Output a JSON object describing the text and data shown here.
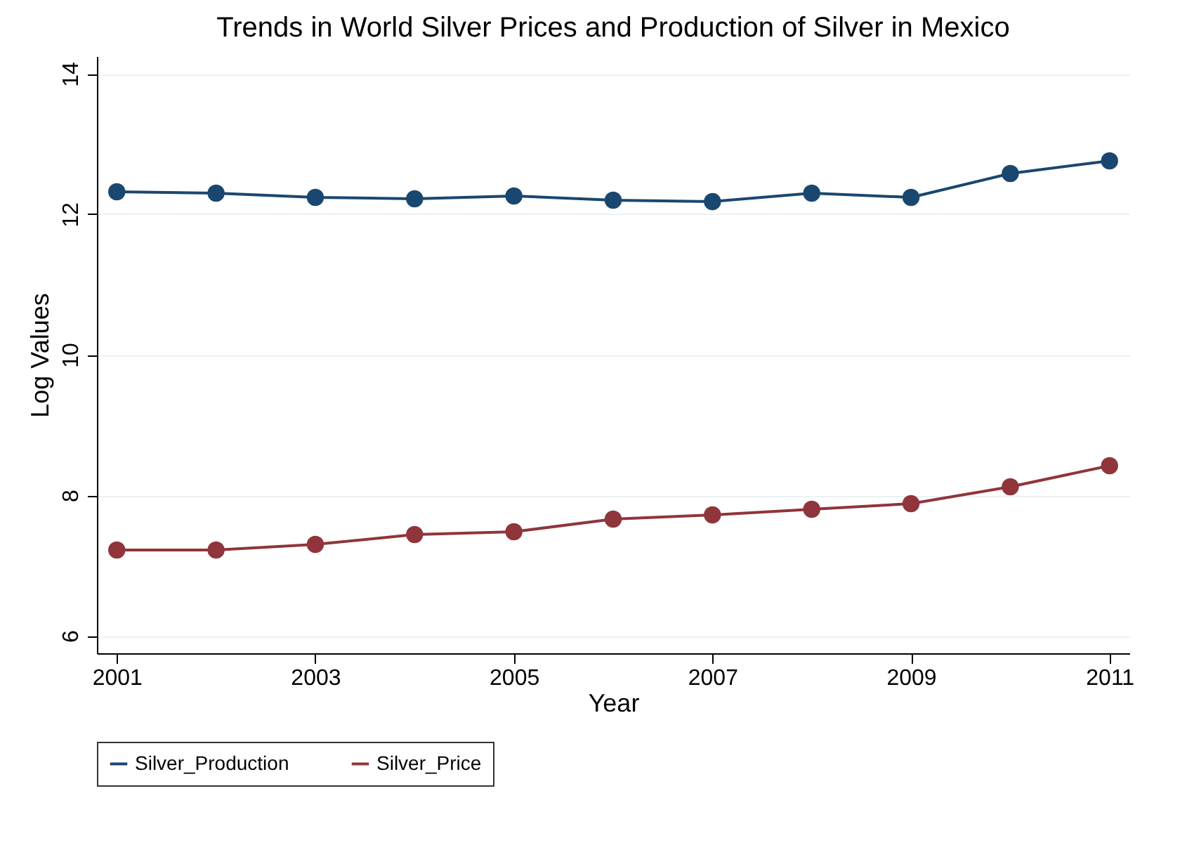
{
  "chart_data": {
    "type": "line",
    "title": "Trends in World Silver Prices and Production of Silver in Mexico",
    "xlabel": "Year",
    "ylabel": "Log Values",
    "x": [
      2001,
      2002,
      2003,
      2004,
      2005,
      2006,
      2007,
      2008,
      2009,
      2010,
      2011
    ],
    "series": [
      {
        "name": "Silver_Production",
        "color": "#1a476f",
        "values": [
          12.32,
          12.3,
          12.24,
          12.22,
          12.26,
          12.2,
          12.18,
          12.3,
          12.24,
          12.58,
          12.76
        ]
      },
      {
        "name": "Silver_Price",
        "color": "#90353b",
        "values": [
          7.22,
          7.22,
          7.3,
          7.44,
          7.48,
          7.66,
          7.72,
          7.8,
          7.88,
          8.12,
          8.42
        ]
      }
    ],
    "xlim": [
      2000.8,
      2011.2
    ],
    "xticks": [
      2001,
      2003,
      2005,
      2007,
      2009,
      2011
    ],
    "ylim": [
      5.75,
      14.25
    ],
    "yticks": [
      6,
      8,
      10,
      12,
      14
    ],
    "grid": "y",
    "legend": "bottom",
    "marker": "circle",
    "line_style": "solid"
  }
}
